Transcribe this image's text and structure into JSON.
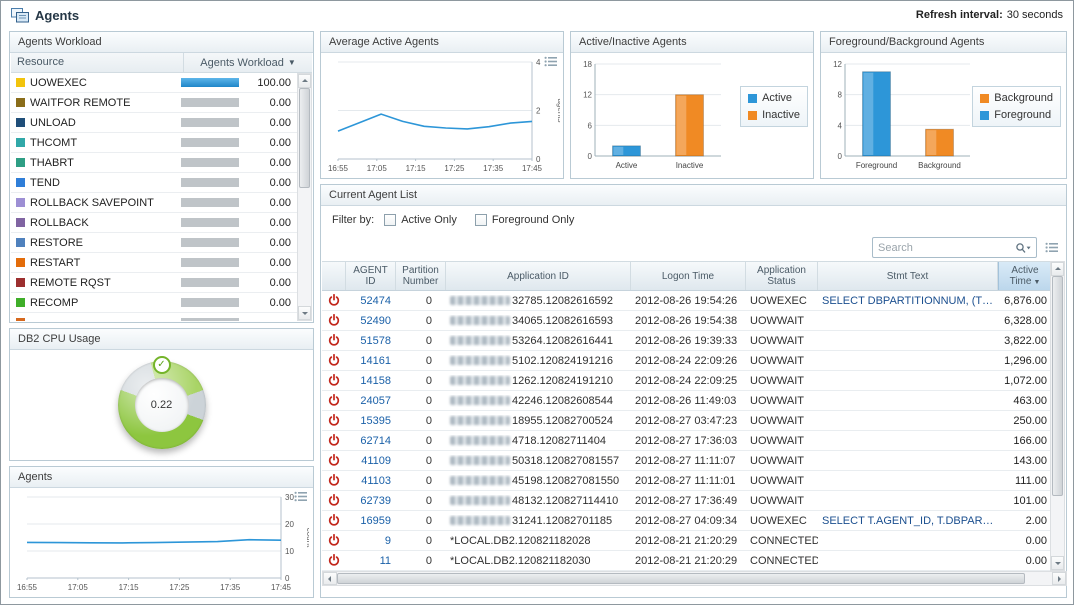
{
  "app": {
    "title": "Agents",
    "refresh_label": "Refresh interval:",
    "refresh_value": "30 seconds"
  },
  "icons": {
    "sort_desc": "▼",
    "check": "✓"
  },
  "panels": {
    "workload": {
      "title": "Agents Workload",
      "col_resource": "Resource",
      "col_value": "Agents Workload"
    },
    "cpu": {
      "title": "DB2 CPU Usage",
      "value": "0.22"
    },
    "agents_trend": {
      "title": "Agents"
    },
    "avg_active": {
      "title": "Average Active Agents"
    },
    "active_inactive": {
      "title": "Active/Inactive Agents"
    },
    "fg_bg": {
      "title": "Foreground/Background Agents"
    },
    "agent_list": {
      "title": "Current Agent List",
      "filter_label": "Filter by:",
      "filter_active": "Active Only",
      "filter_foreground": "Foreground Only",
      "search_placeholder": "Search"
    }
  },
  "workload_rows": [
    {
      "name": "UOWEXEC",
      "color": "#f2c40d",
      "value": "100.00",
      "pct": 100
    },
    {
      "name": "WAITFOR REMOTE",
      "color": "#8a6d1a",
      "value": "0.00",
      "pct": 0
    },
    {
      "name": "UNLOAD",
      "color": "#1f4e79",
      "value": "0.00",
      "pct": 0
    },
    {
      "name": "THCOMT",
      "color": "#31a8a8",
      "value": "0.00",
      "pct": 0
    },
    {
      "name": "THABRT",
      "color": "#2e9e84",
      "value": "0.00",
      "pct": 0
    },
    {
      "name": "TEND",
      "color": "#2f7ed8",
      "value": "0.00",
      "pct": 0
    },
    {
      "name": "ROLLBACK SAVEPOINT",
      "color": "#9d8fd4",
      "value": "0.00",
      "pct": 0
    },
    {
      "name": "ROLLBACK",
      "color": "#8064a2",
      "value": "0.00",
      "pct": 0
    },
    {
      "name": "RESTORE",
      "color": "#4f81bd",
      "value": "0.00",
      "pct": 0
    },
    {
      "name": "RESTART",
      "color": "#e36c0a",
      "value": "0.00",
      "pct": 0
    },
    {
      "name": "REMOTE RQST",
      "color": "#9c2f2f",
      "value": "0.00",
      "pct": 0
    },
    {
      "name": "RECOMP",
      "color": "#3fae29",
      "value": "0.00",
      "pct": 0
    },
    {
      "name": "",
      "color": "#d6691e",
      "value": "",
      "pct": 0
    }
  ],
  "agent_list_columns": [
    "AGENT ID",
    "Partition Number",
    "Application ID",
    "Logon Time",
    "Application Status",
    "Stmt Text",
    "Active Time"
  ],
  "agent_rows": [
    {
      "id": "52474",
      "part": "0",
      "app_blur": true,
      "app": "32785.12082616592",
      "logon": "2012-08-26 19:54:26",
      "status": "UOWEXEC",
      "stmt": "SELECT DBPARTITIONNUM, (TOTAL_L...",
      "time": "6,876.00"
    },
    {
      "id": "52490",
      "part": "0",
      "app_blur": true,
      "app": "34065.12082616593",
      "logon": "2012-08-26 19:54:38",
      "status": "UOWWAIT",
      "stmt": "",
      "time": "6,328.00"
    },
    {
      "id": "51578",
      "part": "0",
      "app_blur": true,
      "app": "53264.12082616441",
      "logon": "2012-08-26 19:39:33",
      "status": "UOWWAIT",
      "stmt": "",
      "time": "3,822.00"
    },
    {
      "id": "14161",
      "part": "0",
      "app_blur": true,
      "app": "5102.120824191216",
      "logon": "2012-08-24 22:09:26",
      "status": "UOWWAIT",
      "stmt": "",
      "time": "1,296.00"
    },
    {
      "id": "14158",
      "part": "0",
      "app_blur": true,
      "app": "1262.120824191210",
      "logon": "2012-08-24 22:09:25",
      "status": "UOWWAIT",
      "stmt": "",
      "time": "1,072.00"
    },
    {
      "id": "24057",
      "part": "0",
      "app_blur": true,
      "app": "42246.12082608544",
      "logon": "2012-08-26 11:49:03",
      "status": "UOWWAIT",
      "stmt": "",
      "time": "463.00"
    },
    {
      "id": "15395",
      "part": "0",
      "app_blur": true,
      "app": "18955.12082700524",
      "logon": "2012-08-27 03:47:23",
      "status": "UOWWAIT",
      "stmt": "",
      "time": "250.00"
    },
    {
      "id": "62714",
      "part": "0",
      "app_blur": true,
      "app": "4718.12082711404",
      "logon": "2012-08-27 17:36:03",
      "status": "UOWWAIT",
      "stmt": "",
      "time": "166.00"
    },
    {
      "id": "41109",
      "part": "0",
      "app_blur": true,
      "app": "50318.120827081557",
      "logon": "2012-08-27 11:11:07",
      "status": "UOWWAIT",
      "stmt": "",
      "time": "143.00"
    },
    {
      "id": "41103",
      "part": "0",
      "app_blur": true,
      "app": "45198.120827081550",
      "logon": "2012-08-27 11:11:01",
      "status": "UOWWAIT",
      "stmt": "",
      "time": "111.00"
    },
    {
      "id": "62739",
      "part": "0",
      "app_blur": true,
      "app": "48132.120827114410",
      "logon": "2012-08-27 17:36:49",
      "status": "UOWWAIT",
      "stmt": "",
      "time": "101.00"
    },
    {
      "id": "16959",
      "part": "0",
      "app_blur": true,
      "app": "31241.12082701185",
      "logon": "2012-08-27 04:09:34",
      "status": "UOWEXEC",
      "stmt": "SELECT T.AGENT_ID, T.DBPARTITION...",
      "time": "2.00"
    },
    {
      "id": "9",
      "part": "0",
      "app_blur": false,
      "app": "*LOCAL.DB2.120821182028",
      "logon": "2012-08-21 21:20:29",
      "status": "CONNECTED",
      "stmt": "",
      "time": "0.00"
    },
    {
      "id": "11",
      "part": "0",
      "app_blur": false,
      "app": "*LOCAL.DB2.120821182030",
      "logon": "2012-08-21 21:20:29",
      "status": "CONNECTED",
      "stmt": "",
      "time": "0.00"
    }
  ],
  "chart_data": [
    {
      "id": "avg_active",
      "type": "line",
      "title": "Average Active Agents",
      "x_ticks": [
        "16:55",
        "17:05",
        "17:15",
        "17:25",
        "17:35",
        "17:45"
      ],
      "values": [
        1.15,
        1.5,
        1.85,
        1.55,
        1.35,
        1.28,
        1.24,
        1.33,
        1.48,
        1.55
      ],
      "ylim": [
        0,
        4
      ],
      "yticks": [
        0,
        2,
        4
      ],
      "ylabel": "agents",
      "line_color": "#2d96d8",
      "axis_side": "right",
      "grid": true
    },
    {
      "id": "active_inactive",
      "type": "bar",
      "title": "Active/Inactive Agents",
      "categories": [
        "Active",
        "Inactive"
      ],
      "values": [
        2,
        12
      ],
      "colors": [
        "#2d96d8",
        "#f08a24"
      ],
      "ylim": [
        0,
        18
      ],
      "yticks": [
        0,
        6,
        12,
        18
      ],
      "legend": [
        {
          "label": "Active",
          "color": "#2d96d8"
        },
        {
          "label": "Inactive",
          "color": "#f08a24"
        }
      ],
      "legend_position": "right"
    },
    {
      "id": "fg_bg",
      "type": "bar",
      "title": "Foreground/Background Agents",
      "categories": [
        "Foreground",
        "Background"
      ],
      "values": [
        11,
        3.5
      ],
      "colors": [
        "#2d96d8",
        "#f08a24"
      ],
      "ylim": [
        0,
        12
      ],
      "yticks": [
        0,
        4,
        8,
        12
      ],
      "legend": [
        {
          "label": "Background",
          "color": "#f08a24"
        },
        {
          "label": "Foreground",
          "color": "#2d96d8"
        }
      ],
      "legend_position": "right"
    },
    {
      "id": "agents_count",
      "type": "line",
      "title": "Agents",
      "x_ticks": [
        "16:55",
        "17:05",
        "17:15",
        "17:25",
        "17:35",
        "17:45"
      ],
      "values": [
        13.2,
        13.1,
        13.05,
        13.0,
        13.1,
        13.3,
        13.5,
        14.2,
        14.0
      ],
      "ylim": [
        0,
        30
      ],
      "yticks": [
        0,
        10,
        20,
        30
      ],
      "ylabel": "count",
      "line_color": "#2d96d8",
      "axis_side": "right",
      "grid": true
    }
  ]
}
